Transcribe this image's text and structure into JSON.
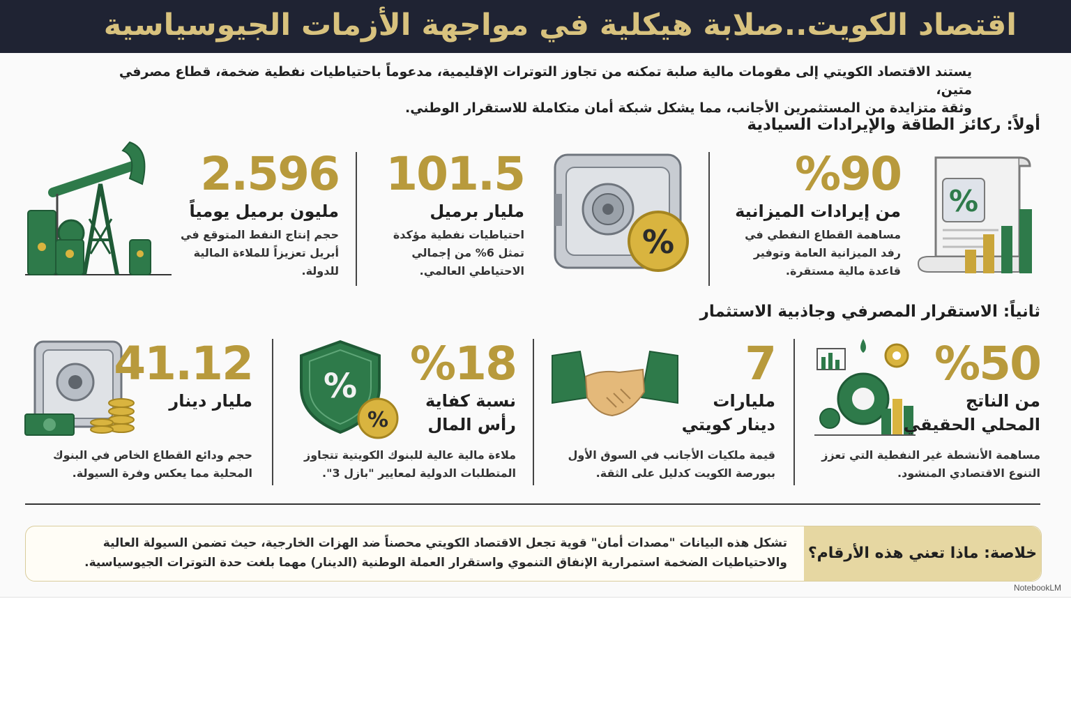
{
  "header": {
    "title": "اقتصاد الكويت..صلابة هيكلية في مواجهة الأزمات الجيوسياسية"
  },
  "intro": {
    "line1": "يستند الاقتصاد الكويتي إلى مقومات مالية صلبة تمكنه من تجاوز التوترات الإقليمية، مدعوماً باحتياطيات نفطية ضخمة، قطاع مصرفي متين،",
    "line2": "وثقة متزايدة من المستثمرين الأجانب، مما يشكل شبكة أمان متكاملة للاستقرار الوطني."
  },
  "section1": {
    "title": "أولاً: ركائز الطاقة والإيرادات السيادية",
    "cards": [
      {
        "value": "%90",
        "unit": "من إيرادات الميزانية",
        "desc": "مساهمة القطاع النفطي في رفد الميزانية العامة وتوفير قاعدة مالية مستقرة."
      },
      {
        "value": "101.5",
        "unit": "مليار برميل",
        "desc": "احتياطيات نفطية مؤكدة تمثل 6% من إجمالي الاحتياطي العالمي."
      },
      {
        "value": "2.596",
        "unit": "مليون برميل يومياً",
        "desc": "حجم إنتاج النفط المتوقع في أبريل تعزيزاً للملاءة المالية للدولة."
      }
    ]
  },
  "section2": {
    "title": "ثانياً: الاستقرار المصرفي وجاذبية الاستثمار",
    "cards": [
      {
        "value": "%50",
        "unit_line1": "من الناتج",
        "unit_line2": "المحلي الحقيقي",
        "desc": "مساهمة الأنشطة غير النفطية التي تعزز التنوع الاقتصادي المنشود."
      },
      {
        "value": "7",
        "unit_line1": "مليارات",
        "unit_line2": "دينار كويتي",
        "desc": "قيمة ملكيات الأجانب في السوق الأول ببورصة الكويت كدليل على الثقة."
      },
      {
        "value": "%18",
        "unit_line1": "نسبة كفاية",
        "unit_line2": "رأس المال",
        "desc": "ملاءة مالية عالية للبنوك الكويتية تتجاوز المتطلبات الدولية لمعايير \"بازل 3\"."
      },
      {
        "value": "41.12",
        "unit_line1": "مليار دينار",
        "unit_line2": "",
        "desc": "حجم ودائع القطاع الخاص في البنوك المحلية مما يعكس وفرة السيولة."
      }
    ]
  },
  "summary": {
    "label": "خلاصة: ماذا تعني هذه الأرقام؟",
    "text": "تشكل هذه البيانات \"مصدات أمان\" قوية تجعل الاقتصاد الكويتي محصناً ضد الهزات الخارجية، حيث تضمن السيولة العالية والاحتياطيات الضخمة استمرارية الإنفاق التنموي واستقرار العملة الوطنية (الدينار) مهما بلغت حدة التوترات الجيوسياسية."
  },
  "watermark": "NotebookLM",
  "icons": {
    "document": "document-percent-chart-icon",
    "safe": "safe-percent-icon",
    "oil": "oil-pump-barrels-icon",
    "industry": "gears-industry-icon",
    "handshake": "handshake-icon",
    "shield": "shield-percent-icon",
    "vault": "vault-money-coins-icon"
  },
  "colors": {
    "header_bg": "#1f2333",
    "gold": "#b89a3c",
    "green": "#2e7a4a"
  }
}
